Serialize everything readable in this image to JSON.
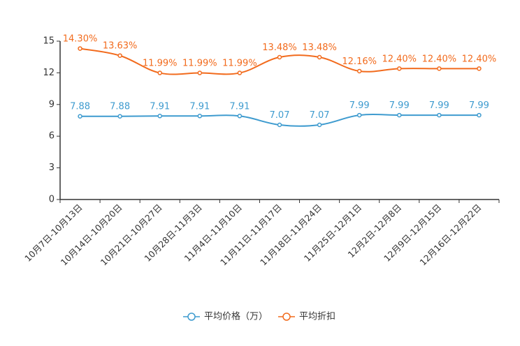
{
  "chart_data": {
    "type": "line",
    "categories": [
      "10月7日-10月13日",
      "10月14日-10月20日",
      "10月21日-10月27日",
      "10月28日-11月3日",
      "11月4日-11月10日",
      "11月11日-11月17日",
      "11月18日-11月24日",
      "11月25日-12月1日",
      "12月2日-12月8日",
      "12月9日-12月15日",
      "12月16日-12月22日"
    ],
    "series": [
      {
        "name": "平均价格（万）",
        "color": "#3e9bcf",
        "values": [
          7.88,
          7.88,
          7.91,
          7.91,
          7.91,
          7.07,
          7.07,
          7.99,
          7.99,
          7.99,
          7.99
        ],
        "labels": [
          "7.88",
          "7.88",
          "7.91",
          "7.91",
          "7.91",
          "7.07",
          "7.07",
          "7.99",
          "7.99",
          "7.99",
          "7.99"
        ]
      },
      {
        "name": "平均折扣",
        "color": "#f26b1d",
        "values": [
          14.3,
          13.63,
          11.99,
          11.99,
          11.99,
          13.48,
          13.48,
          12.16,
          12.4,
          12.4,
          12.4
        ],
        "labels": [
          "14.30%",
          "13.63%",
          "11.99%",
          "11.99%",
          "11.99%",
          "13.48%",
          "13.48%",
          "12.16%",
          "12.40%",
          "12.40%",
          "12.40%"
        ]
      }
    ],
    "ylim": [
      0,
      15
    ],
    "yticks": [
      "0",
      "3",
      "6",
      "9",
      "12",
      "15"
    ],
    "title": "",
    "xlabel": "",
    "ylabel": "",
    "legend_position": "bottom-center"
  }
}
